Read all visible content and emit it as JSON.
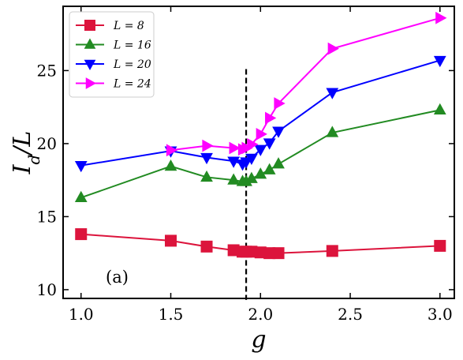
{
  "chart_data": {
    "type": "line",
    "xlabel": "g",
    "ylabel": "I_d/L",
    "xlim": [
      0.9,
      3.08
    ],
    "ylim": [
      9.4,
      29.4
    ],
    "x_ticks": [
      "1.0",
      "1.5",
      "2.0",
      "2.5",
      "3.0"
    ],
    "y_ticks": [
      "10",
      "15",
      "20",
      "25"
    ],
    "legend_position": "top-left",
    "annotation": "(a)",
    "vline": {
      "x": 1.92,
      "y_range": [
        9.3,
        25.1
      ],
      "style": "dashed"
    },
    "grid": false,
    "series": [
      {
        "name": "L = 8",
        "color": "#dc143c",
        "marker": "square",
        "x": [
          1.0,
          1.5,
          1.7,
          1.85,
          1.9,
          1.92,
          1.95,
          2.0,
          2.05,
          2.1,
          2.4,
          3.0
        ],
        "y": [
          13.8,
          13.35,
          12.95,
          12.7,
          12.6,
          12.6,
          12.6,
          12.55,
          12.5,
          12.5,
          12.65,
          13.0
        ]
      },
      {
        "name": "L = 16",
        "color": "#228b22",
        "marker": "triangle-up",
        "x": [
          1.0,
          1.5,
          1.7,
          1.85,
          1.9,
          1.92,
          1.95,
          2.0,
          2.05,
          2.1,
          2.4,
          3.0
        ],
        "y": [
          16.3,
          18.45,
          17.7,
          17.5,
          17.4,
          17.4,
          17.6,
          17.9,
          18.2,
          18.6,
          20.75,
          22.3
        ]
      },
      {
        "name": "L = 20",
        "color": "#0000ff",
        "marker": "triangle-down",
        "x": [
          1.0,
          1.5,
          1.7,
          1.85,
          1.9,
          1.92,
          1.95,
          2.0,
          2.05,
          2.1,
          2.4,
          3.0
        ],
        "y": [
          18.5,
          19.5,
          19.05,
          18.8,
          18.6,
          18.75,
          19.0,
          19.6,
          20.05,
          20.85,
          23.5,
          25.7
        ]
      },
      {
        "name": "L = 24",
        "color": "#ff00ff",
        "marker": "triangle-right",
        "x": [
          1.5,
          1.7,
          1.85,
          1.9,
          1.92,
          1.95,
          2.0,
          2.05,
          2.1,
          2.4,
          3.0
        ],
        "y": [
          19.55,
          19.85,
          19.7,
          19.6,
          19.7,
          19.95,
          20.65,
          21.75,
          22.75,
          26.5,
          28.6
        ]
      }
    ]
  }
}
